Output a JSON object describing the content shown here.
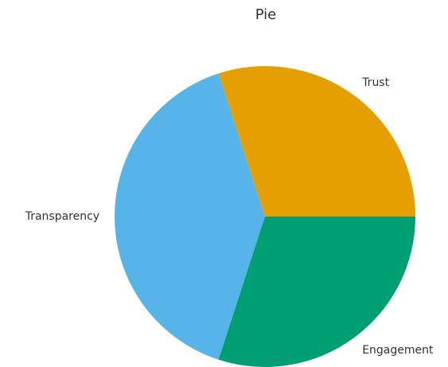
{
  "chart_data": {
    "type": "pie",
    "title": "Pie",
    "categories": [
      "Trust",
      "Transparency",
      "Engagement"
    ],
    "values": [
      0.3,
      0.4,
      0.3
    ],
    "colors": [
      "#E69F00",
      "#56B4E9",
      "#009E73"
    ],
    "legend": "none"
  }
}
